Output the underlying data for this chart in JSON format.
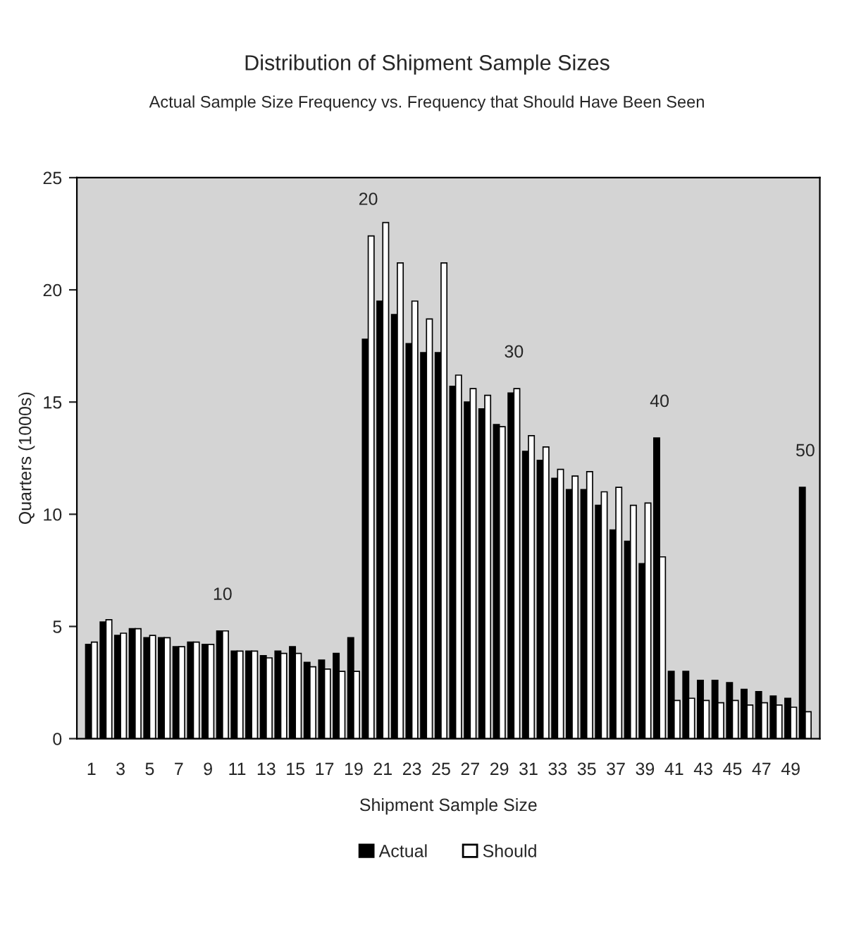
{
  "chart_data": {
    "type": "bar",
    "title": "Distribution of Shipment Sample Sizes",
    "subtitle": "Actual Sample Size Frequency vs. Frequency that Should Have Been Seen",
    "xlabel": "Shipment Sample Size",
    "ylabel": "Quarters (1000s)",
    "x": [
      1,
      2,
      3,
      4,
      5,
      6,
      7,
      8,
      9,
      10,
      11,
      12,
      13,
      14,
      15,
      16,
      17,
      18,
      19,
      20,
      21,
      22,
      23,
      24,
      25,
      26,
      27,
      28,
      29,
      30,
      31,
      32,
      33,
      34,
      35,
      36,
      37,
      38,
      39,
      40,
      41,
      42,
      43,
      44,
      45,
      46,
      47,
      48,
      49,
      50
    ],
    "series": [
      {
        "name": "Actual",
        "color": "#000000",
        "values": [
          4.2,
          5.2,
          4.6,
          4.9,
          4.5,
          4.5,
          4.1,
          4.3,
          4.2,
          4.8,
          3.9,
          3.9,
          3.7,
          3.9,
          4.1,
          3.4,
          3.5,
          3.8,
          4.5,
          17.8,
          19.5,
          18.9,
          17.6,
          17.2,
          17.2,
          15.7,
          15.0,
          14.7,
          14.0,
          15.4,
          12.8,
          12.4,
          11.6,
          11.1,
          11.1,
          10.4,
          9.3,
          8.8,
          7.8,
          13.4,
          3.0,
          3.0,
          2.6,
          2.6,
          2.5,
          2.2,
          2.1,
          1.9,
          1.8,
          11.2
        ]
      },
      {
        "name": "Should",
        "color": "#ffffff",
        "values": [
          4.3,
          5.3,
          4.7,
          4.9,
          4.6,
          4.5,
          4.1,
          4.3,
          4.2,
          4.8,
          3.9,
          3.9,
          3.6,
          3.8,
          3.8,
          3.2,
          3.1,
          3.0,
          3.0,
          22.4,
          23.0,
          21.2,
          19.5,
          18.7,
          21.2,
          16.2,
          15.6,
          15.3,
          13.9,
          15.6,
          13.5,
          13.0,
          12.0,
          11.7,
          11.9,
          11.0,
          11.2,
          10.4,
          10.5,
          8.1,
          1.7,
          1.8,
          1.7,
          1.6,
          1.7,
          1.5,
          1.6,
          1.5,
          1.4,
          1.2
        ]
      }
    ],
    "xlim": [
      0,
      51
    ],
    "xticks": [
      1,
      3,
      5,
      7,
      9,
      11,
      13,
      15,
      17,
      19,
      21,
      23,
      25,
      27,
      29,
      31,
      33,
      35,
      37,
      39,
      41,
      43,
      45,
      47,
      49
    ],
    "ylim": [
      0,
      25
    ],
    "yticks": [
      0,
      5,
      10,
      15,
      20,
      25
    ],
    "annotations": [
      {
        "text": "10",
        "x": 10,
        "y": 4.8
      },
      {
        "text": "20",
        "x": 20,
        "y": 22.4
      },
      {
        "text": "30",
        "x": 30,
        "y": 15.6
      },
      {
        "text": "40",
        "x": 40,
        "y": 13.4
      },
      {
        "text": "50",
        "x": 50,
        "y": 11.2
      }
    ],
    "legend": "bottom",
    "grid": false
  }
}
